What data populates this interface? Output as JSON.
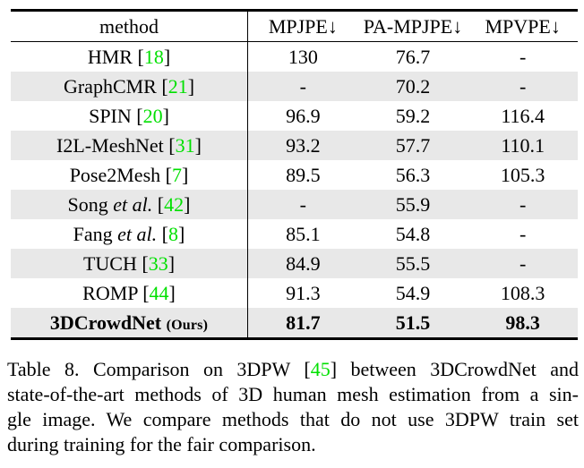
{
  "colors": {
    "citation_green": "#00e000",
    "row_alt_gray": "#e8e8e8",
    "rule_black": "#000000"
  },
  "table": {
    "citation_open": "[",
    "citation_close": "]",
    "columns": [
      "method",
      "MPJPE↓",
      "PA-MPJPE↓",
      "MPVPE↓"
    ],
    "rows": [
      {
        "name": "HMR",
        "etal": "",
        "ref": "18",
        "mpjpe": "130",
        "pa_mpjpe": "76.7",
        "mpvpe": "-"
      },
      {
        "name": "GraphCMR",
        "etal": "",
        "ref": "21",
        "mpjpe": "-",
        "pa_mpjpe": "70.2",
        "mpvpe": "-"
      },
      {
        "name": "SPIN",
        "etal": "",
        "ref": "20",
        "mpjpe": "96.9",
        "pa_mpjpe": "59.2",
        "mpvpe": "116.4"
      },
      {
        "name": "I2L-MeshNet",
        "etal": "",
        "ref": "31",
        "mpjpe": "93.2",
        "pa_mpjpe": "57.7",
        "mpvpe": "110.1"
      },
      {
        "name": "Pose2Mesh",
        "etal": "",
        "ref": "7",
        "mpjpe": "89.5",
        "pa_mpjpe": "56.3",
        "mpvpe": "105.3"
      },
      {
        "name": "Song",
        "etal": " et al.",
        "ref": "42",
        "mpjpe": "-",
        "pa_mpjpe": "55.9",
        "mpvpe": "-"
      },
      {
        "name": "Fang",
        "etal": " et al.",
        "ref": "8",
        "mpjpe": "85.1",
        "pa_mpjpe": "54.8",
        "mpvpe": "-"
      },
      {
        "name": "TUCH",
        "etal": "",
        "ref": "33",
        "mpjpe": "84.9",
        "pa_mpjpe": "55.5",
        "mpvpe": "-"
      },
      {
        "name": "ROMP",
        "etal": "",
        "ref": "44",
        "mpjpe": "91.3",
        "pa_mpjpe": "54.9",
        "mpvpe": "108.3"
      },
      {
        "name": "3DCrowdNet",
        "suffix": "(Ours)",
        "mpjpe": "81.7",
        "pa_mpjpe": "51.5",
        "mpvpe": "98.3"
      }
    ]
  },
  "caption": {
    "line1_pre": "Table 8.  Comparison on 3DPW [",
    "line1_ref": "45",
    "line1_post": "] between 3DCrowdNet and",
    "line2": "state-of-the-art methods of 3D human mesh estimation from a sin-",
    "line3": "gle image.  We compare methods that do not use 3DPW train set",
    "line4": "during training for the fair comparison."
  }
}
